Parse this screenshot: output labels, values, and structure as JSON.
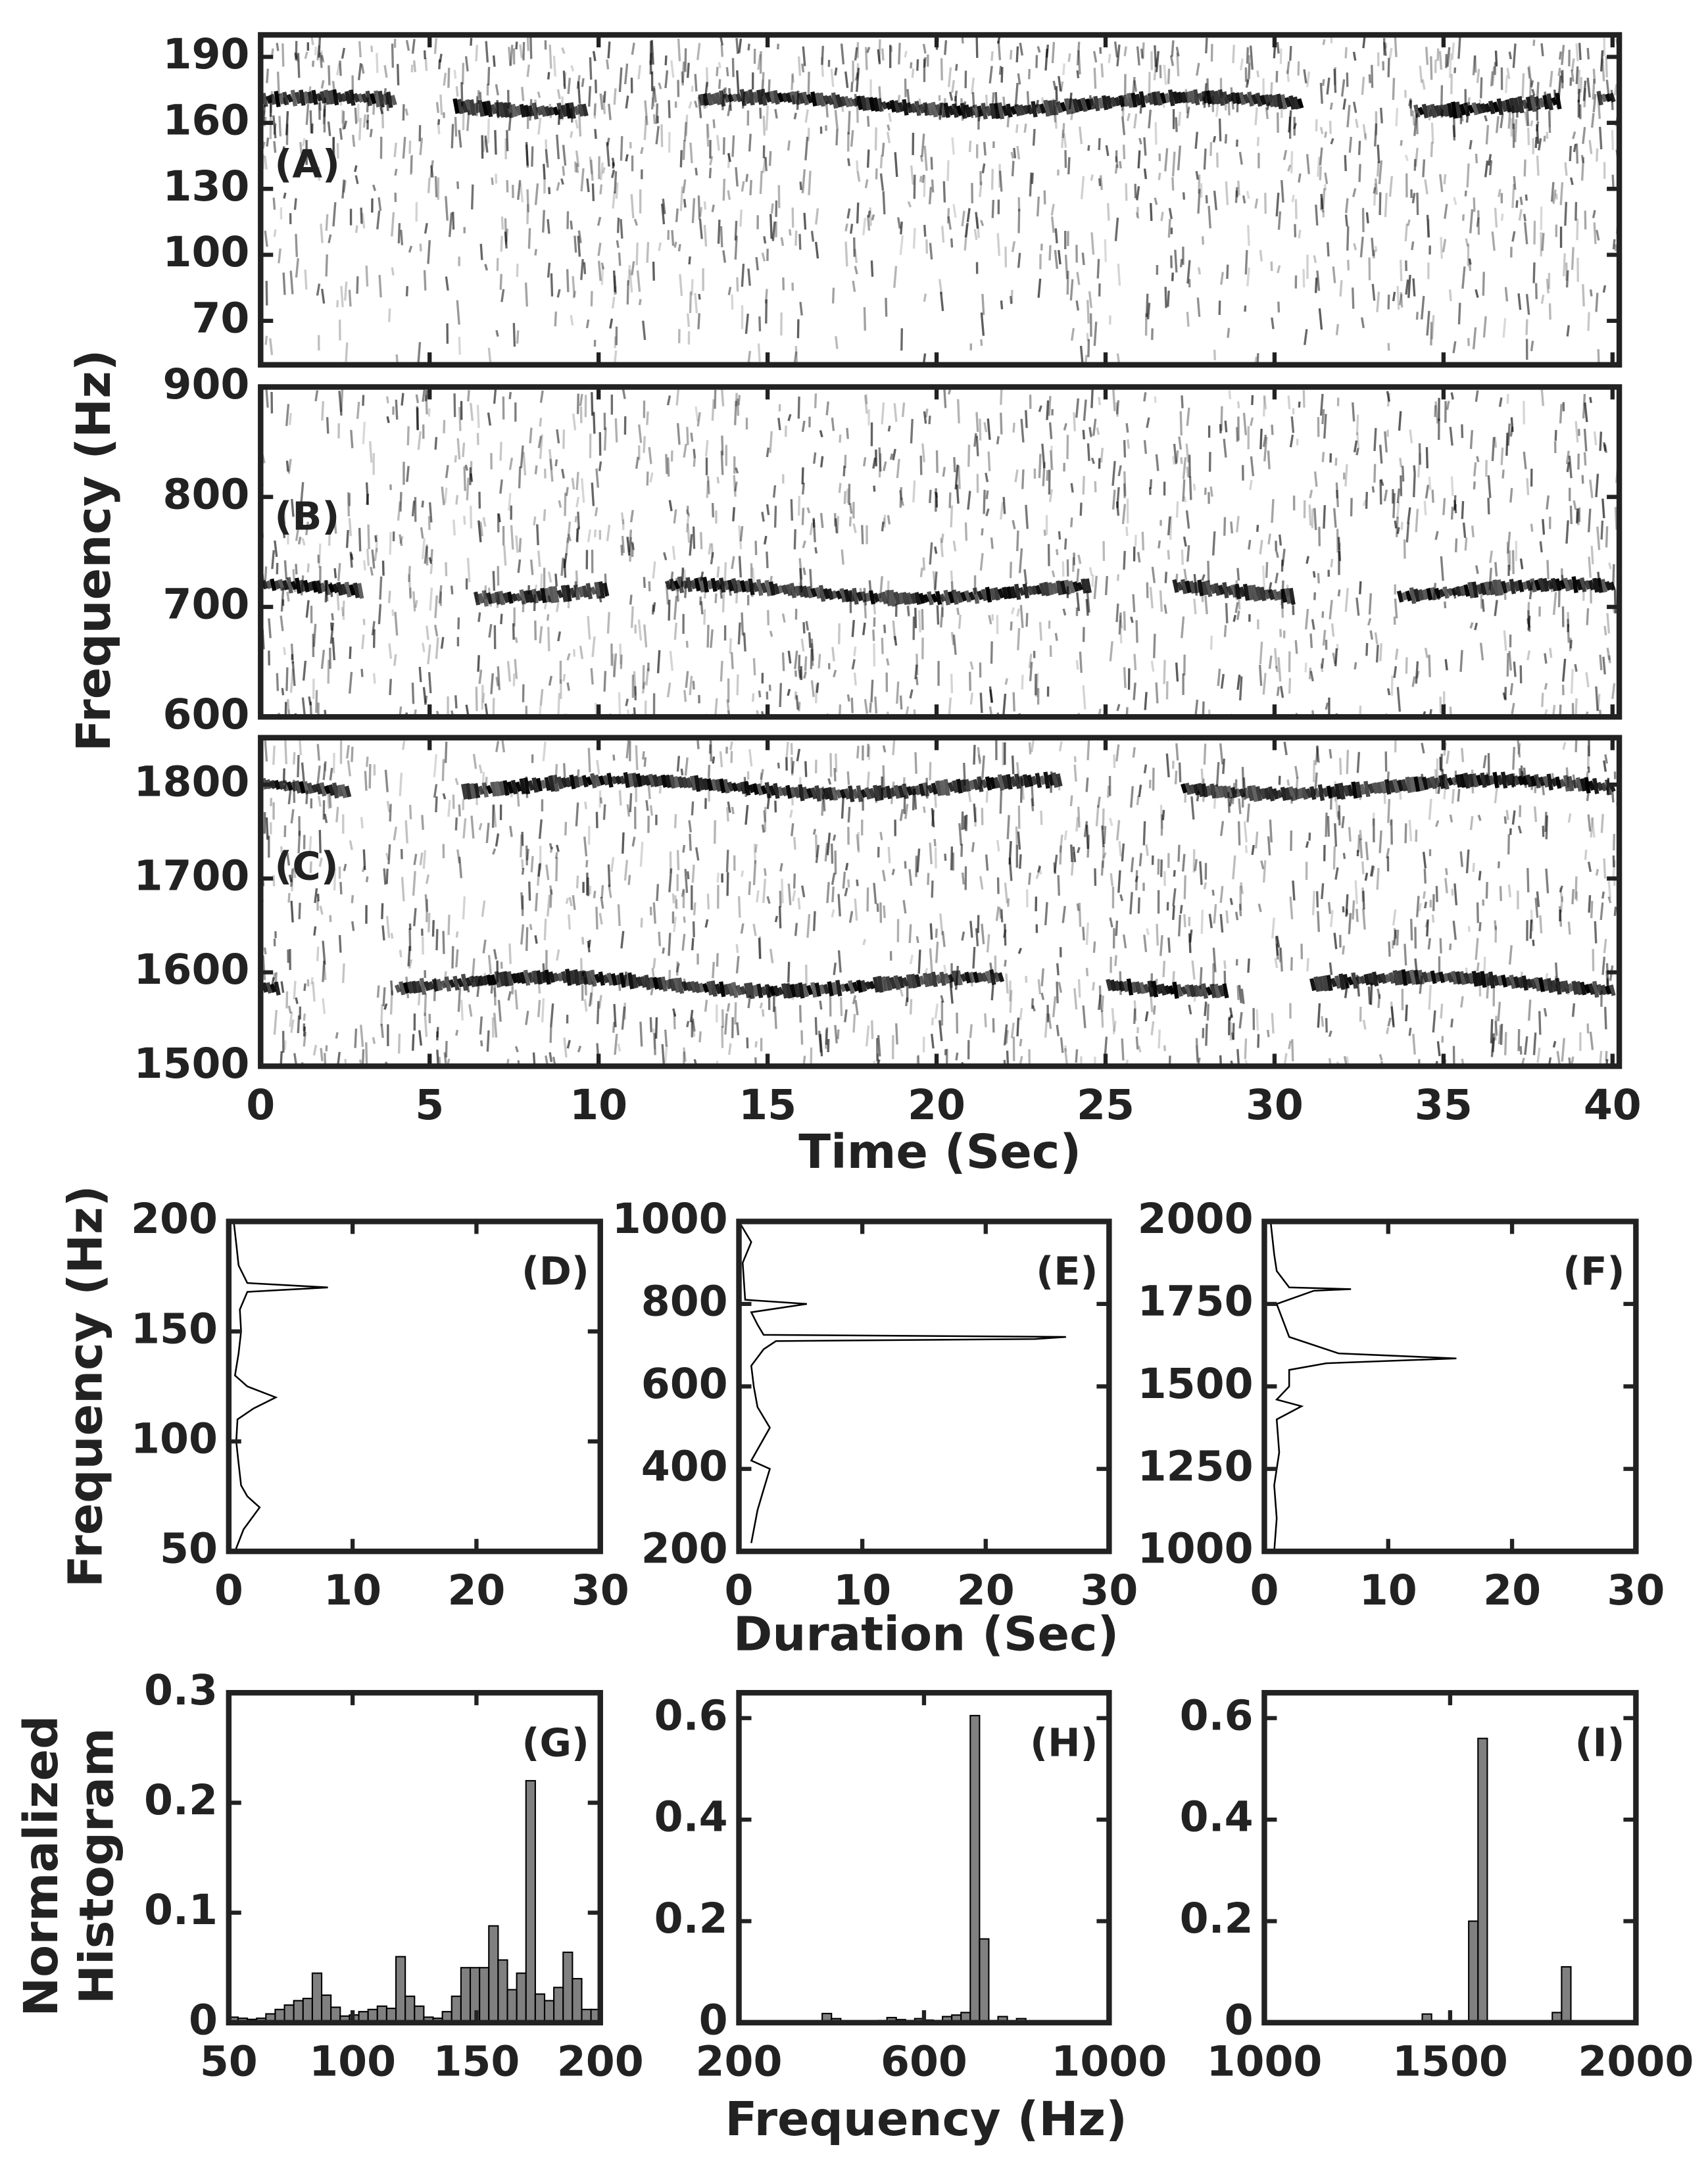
{
  "chart_data": [
    {
      "type": "spectrogram",
      "annotation": "(A)",
      "ylim": [
        50,
        200
      ],
      "yticks": [
        70,
        100,
        130,
        160,
        190
      ]
    },
    {
      "type": "spectrogram",
      "annotation": "(B)",
      "ylim": [
        600,
        900
      ],
      "yticks": [
        600,
        700,
        800,
        900
      ],
      "ylabel": "Frequency (Hz)"
    },
    {
      "type": "spectrogram",
      "annotation": "(C)",
      "ylim": [
        1500,
        1850
      ],
      "yticks": [
        1500,
        1600,
        1700,
        1800
      ],
      "xlim": [
        0,
        40.2
      ],
      "xticks": [
        0,
        5,
        10,
        15,
        20,
        25,
        30,
        35,
        40
      ],
      "xlabel": "Time (Sec)"
    },
    {
      "type": "line",
      "annotation": "(D)",
      "ylabel": "Frequency (Hz)",
      "xlim": [
        0,
        30
      ],
      "xticks": [
        0,
        10,
        20,
        30
      ],
      "ylim": [
        50,
        200
      ],
      "yticks": [
        50,
        100,
        150,
        200
      ],
      "values": [
        50,
        60,
        70,
        75,
        80,
        90,
        100,
        110,
        115,
        120,
        125,
        130,
        140,
        150,
        160,
        168,
        170,
        172,
        180,
        190,
        200
      ],
      "x": [
        0.5,
        1.2,
        2.5,
        1.5,
        1.0,
        0.8,
        0.6,
        0.7,
        2,
        3.8,
        1.5,
        0.5,
        0.8,
        1.0,
        0.9,
        1.5,
        8,
        1.5,
        0.8,
        0.6,
        0.4
      ]
    },
    {
      "type": "line",
      "annotation": "(E)",
      "xlabel": "Duration (Sec)",
      "xlim": [
        0,
        30
      ],
      "xticks": [
        0,
        10,
        20,
        30
      ],
      "ylim": [
        200,
        1000
      ],
      "yticks": [
        200,
        400,
        600,
        800,
        1000
      ],
      "values": [
        220,
        300,
        350,
        400,
        420,
        500,
        550,
        600,
        650,
        690,
        710,
        715,
        720,
        725,
        750,
        780,
        800,
        810,
        900,
        950,
        1000
      ],
      "x": [
        1,
        1.5,
        2,
        2.5,
        1,
        2.5,
        1.5,
        1.2,
        1,
        2,
        3,
        24,
        26.5,
        2,
        1.5,
        1,
        5.5,
        0.5,
        0.3,
        1,
        0
      ]
    },
    {
      "type": "line",
      "annotation": "(F)",
      "xlim": [
        0,
        30
      ],
      "xticks": [
        0,
        10,
        20,
        30
      ],
      "ylim": [
        1000,
        2000
      ],
      "yticks": [
        1000,
        1250,
        1500,
        1750,
        2000
      ],
      "values": [
        1000,
        1100,
        1200,
        1300,
        1400,
        1440,
        1460,
        1500,
        1550,
        1570,
        1585,
        1600,
        1650,
        1700,
        1750,
        1790,
        1795,
        1800,
        1850,
        1900,
        2000
      ],
      "x": [
        0.8,
        1,
        0.8,
        1.2,
        1,
        3,
        1,
        2,
        2,
        5,
        15.5,
        6,
        2,
        1.5,
        1,
        4,
        7,
        2,
        1,
        0.8,
        0.5
      ]
    },
    {
      "type": "histogram",
      "annotation": "(G)",
      "ylabel": [
        "Normalized",
        "Histogram"
      ],
      "xlim": [
        50,
        200
      ],
      "xticks": [
        50,
        100,
        150,
        200
      ],
      "ylim": [
        0,
        0.3
      ],
      "yticks": [
        0,
        0.1,
        0.2,
        0.3
      ],
      "bins": [
        50,
        53.75,
        57.5,
        61.25,
        65,
        68.75,
        72.5,
        76.25,
        80,
        83.75,
        87.5,
        91.25,
        95,
        98.75,
        102.5,
        106.25,
        110,
        113.75,
        117.5,
        121.25,
        125,
        128.75,
        132.5,
        136.25,
        140,
        143.75,
        147.5,
        151.25,
        155,
        158.75,
        162.5,
        166.25,
        170,
        173.75,
        177.5,
        181.25,
        185,
        188.75,
        192.5,
        196.25,
        200
      ],
      "values": [
        0.005,
        0.004,
        0.003,
        0.004,
        0.008,
        0.012,
        0.016,
        0.02,
        0.022,
        0.045,
        0.025,
        0.014,
        0.006,
        0.007,
        0.01,
        0.012,
        0.015,
        0.013,
        0.06,
        0.024,
        0.015,
        0.005,
        0.004,
        0.01,
        0.024,
        0.05,
        0.05,
        0.05,
        0.088,
        0.057,
        0.03,
        0.045,
        0.22,
        0.026,
        0.02,
        0.032,
        0.064,
        0.04,
        0.012,
        0.012
      ]
    },
    {
      "type": "histogram",
      "annotation": "(H)",
      "xlabel": "Frequency (Hz)",
      "xlim": [
        200,
        1000
      ],
      "xticks": [
        200,
        600,
        1000
      ],
      "ylim": [
        0,
        0.65
      ],
      "yticks": [
        0,
        0.2,
        0.4,
        0.6
      ],
      "bins": [
        200,
        220,
        240,
        260,
        280,
        300,
        320,
        340,
        360,
        380,
        400,
        420,
        440,
        460,
        480,
        500,
        520,
        540,
        560,
        580,
        600,
        620,
        640,
        660,
        680,
        700,
        720,
        740,
        760,
        780,
        800,
        820,
        840,
        860,
        880,
        900,
        920,
        940,
        960,
        980,
        1000
      ],
      "values": [
        0.002,
        0.002,
        0.002,
        0.002,
        0.002,
        0.002,
        0.002,
        0.002,
        0.002,
        0.018,
        0.008,
        0.003,
        0.003,
        0.003,
        0.003,
        0.004,
        0.01,
        0.006,
        0.004,
        0.008,
        0.005,
        0.004,
        0.012,
        0.015,
        0.02,
        0.605,
        0.165,
        0.004,
        0.012,
        0.003,
        0.008,
        0.002,
        0.002,
        0.002,
        0.002,
        0.002,
        0.002,
        0.002,
        0.002,
        0.002
      ]
    },
    {
      "type": "histogram",
      "annotation": "(I)",
      "xlim": [
        1000,
        2000
      ],
      "xticks": [
        1000,
        1500,
        2000
      ],
      "ylim": [
        0,
        0.65
      ],
      "yticks": [
        0,
        0.2,
        0.4,
        0.6
      ],
      "bins": [
        1000,
        1025,
        1050,
        1075,
        1100,
        1125,
        1150,
        1175,
        1200,
        1225,
        1250,
        1275,
        1300,
        1325,
        1350,
        1375,
        1400,
        1425,
        1450,
        1475,
        1500,
        1525,
        1550,
        1575,
        1600,
        1625,
        1650,
        1675,
        1700,
        1725,
        1750,
        1775,
        1800,
        1825,
        1850,
        1875,
        1900,
        1925,
        1950,
        1975,
        2000
      ],
      "values": [
        0.002,
        0.002,
        0.002,
        0.002,
        0.002,
        0.002,
        0.002,
        0.002,
        0.002,
        0.002,
        0.002,
        0.002,
        0.002,
        0.002,
        0.002,
        0.002,
        0.002,
        0.017,
        0.004,
        0.002,
        0.002,
        0.002,
        0.2,
        0.56,
        0.002,
        0.002,
        0.002,
        0.002,
        0.002,
        0.002,
        0.002,
        0.02,
        0.11,
        0.002,
        0.002,
        0.002,
        0.002,
        0.002,
        0.002,
        0.002
      ]
    }
  ]
}
